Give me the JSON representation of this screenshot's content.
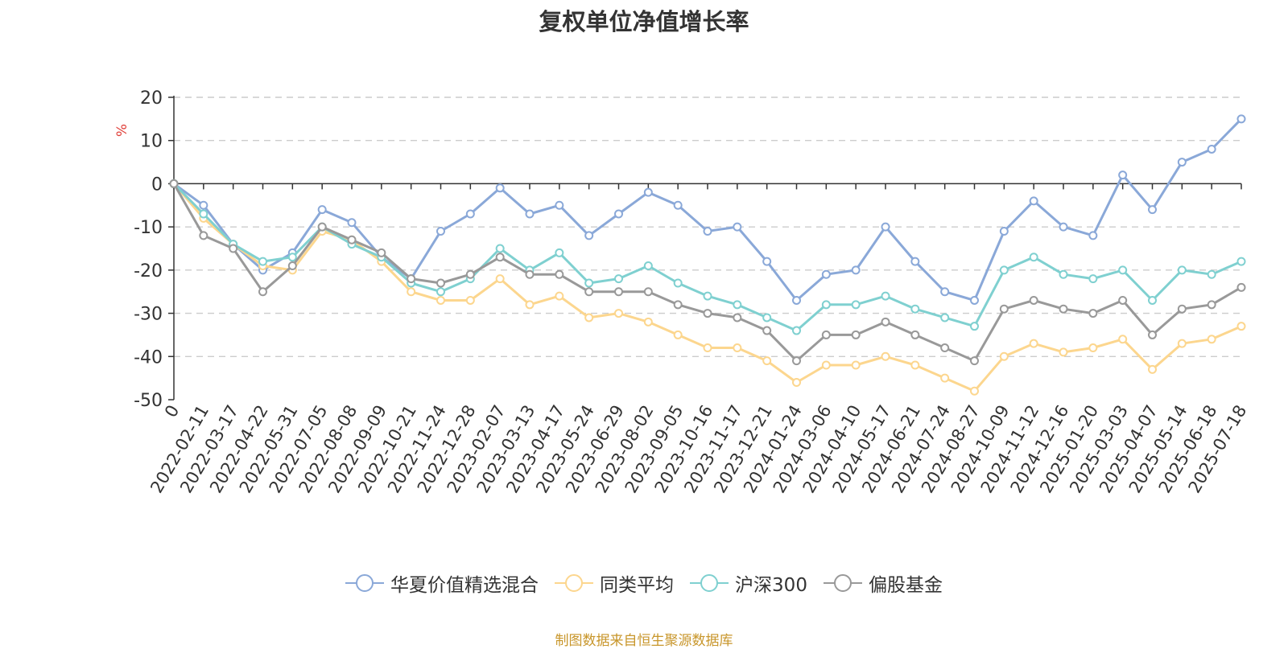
{
  "title": "复权单位净值增长率",
  "source": "制图数据来自恒生聚源数据库",
  "chart_data": {
    "type": "line",
    "title": "复权单位净值增长率",
    "ylabel": "%",
    "ylim": [
      -50,
      20
    ],
    "y_ticks": [
      20,
      10,
      0,
      -10,
      -20,
      -30,
      -40,
      -50
    ],
    "categories": [
      "0",
      "2022-02-11",
      "2022-03-17",
      "2022-04-22",
      "2022-05-31",
      "2022-07-05",
      "2022-08-08",
      "2022-09-09",
      "2022-10-21",
      "2022-11-24",
      "2022-12-28",
      "2023-02-07",
      "2023-03-13",
      "2023-04-17",
      "2023-05-24",
      "2023-06-29",
      "2023-08-02",
      "2023-09-05",
      "2023-10-16",
      "2023-11-17",
      "2023-12-21",
      "2024-01-24",
      "2024-03-06",
      "2024-04-10",
      "2024-05-17",
      "2024-06-21",
      "2024-07-24",
      "2024-08-27",
      "2024-10-09",
      "2024-11-12",
      "2024-12-16",
      "2025-01-20",
      "2025-03-03",
      "2025-04-07",
      "2025-05-14",
      "2025-06-18",
      "2025-07-18"
    ],
    "grid": true,
    "legend_position": "bottom",
    "series": [
      {
        "name": "华夏价值精选混合",
        "color": "#8aa8d8",
        "values": [
          0,
          -5,
          -14,
          -20,
          -16,
          -6,
          -9,
          -17,
          -22,
          -11,
          -7,
          -1,
          -7,
          -5,
          -12,
          -7,
          -2,
          -5,
          -11,
          -10,
          -18,
          -27,
          -21,
          -20,
          -10,
          -18,
          -25,
          -27,
          -11,
          -4,
          -10,
          -12,
          2,
          -6,
          5,
          8,
          15
        ]
      },
      {
        "name": "同类平均",
        "color": "#fcd68e",
        "values": [
          0,
          -8,
          -14,
          -19,
          -20,
          -11,
          -13,
          -18,
          -25,
          -27,
          -27,
          -22,
          -28,
          -26,
          -31,
          -30,
          -32,
          -35,
          -38,
          -38,
          -41,
          -46,
          -42,
          -42,
          -40,
          -42,
          -45,
          -48,
          -40,
          -37,
          -39,
          -38,
          -36,
          -43,
          -37,
          -36,
          -33
        ]
      },
      {
        "name": "沪深300",
        "color": "#7fd0d0",
        "values": [
          0,
          -7,
          -14,
          -18,
          -17,
          -10,
          -14,
          -17,
          -23,
          -25,
          -22,
          -15,
          -20,
          -16,
          -23,
          -22,
          -19,
          -23,
          -26,
          -28,
          -31,
          -34,
          -28,
          -28,
          -26,
          -29,
          -31,
          -33,
          -20,
          -17,
          -21,
          -22,
          -20,
          -27,
          -20,
          -21,
          -18
        ]
      },
      {
        "name": "偏股基金",
        "color": "#999999",
        "values": [
          0,
          -12,
          -15,
          -25,
          -19,
          -10,
          -13,
          -16,
          -22,
          -23,
          -21,
          -17,
          -21,
          -21,
          -25,
          -25,
          -25,
          -28,
          -30,
          -31,
          -34,
          -41,
          -35,
          -35,
          -32,
          -35,
          -38,
          -41,
          -29,
          -27,
          -29,
          -30,
          -27,
          -35,
          -29,
          -28,
          -24
        ]
      }
    ]
  }
}
